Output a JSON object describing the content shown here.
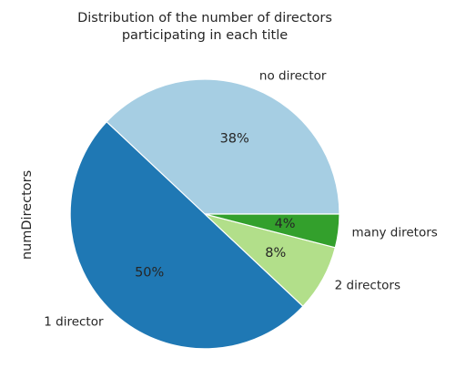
{
  "chart_data": {
    "type": "pie",
    "title_lines": [
      "Distribution of the number of directors",
      "participating in each title"
    ],
    "ylabel": "numDirectors",
    "slices": [
      {
        "label": "no director",
        "value": 38,
        "pct_label": "38%",
        "color": "#a6cee3"
      },
      {
        "label": "1 director",
        "value": 50,
        "pct_label": "50%",
        "color": "#1f78b4"
      },
      {
        "label": "2 directors",
        "value": 8,
        "pct_label": "8%",
        "color": "#b2df8a"
      },
      {
        "label": "many diretors",
        "value": 4,
        "pct_label": "4%",
        "color": "#33a02c"
      }
    ],
    "start_angle_deg": 0,
    "direction": "counterclockwise",
    "legend": "none"
  }
}
